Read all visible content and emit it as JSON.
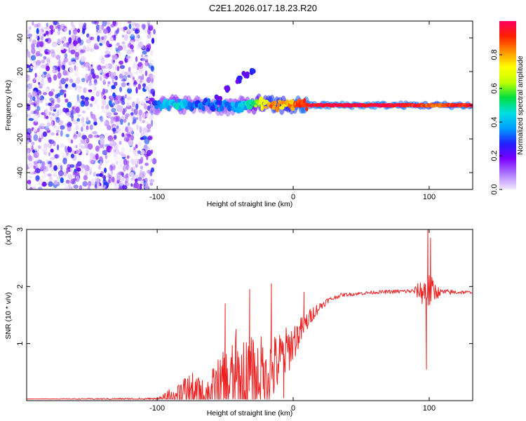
{
  "figure": {
    "title": "C2E1.2026.017.18.23.R20"
  },
  "chart_data": [
    {
      "type": "heatmap",
      "panel": "spectrogram",
      "xlabel": "Height of straight line (km)",
      "ylabel": "Frequency (Hz)",
      "xlim": [
        -196,
        132
      ],
      "ylim": [
        -50,
        50
      ],
      "x_ticks": [
        {
          "value": -100,
          "label": "-100"
        },
        {
          "value": 0,
          "label": "0"
        },
        {
          "value": 100,
          "label": "100"
        }
      ],
      "y_ticks": [
        {
          "value": 40,
          "label": "40"
        },
        {
          "value": 20,
          "label": "20"
        },
        {
          "value": 0,
          "label": "0"
        },
        {
          "value": -20,
          "label": "-20"
        },
        {
          "value": -40,
          "label": "-40"
        }
      ],
      "noise_region": {
        "x_from": -196,
        "x_to": -102,
        "description_level": 0.1
      },
      "signal_track": [
        {
          "x": -102,
          "freq": 0,
          "amp": 0.28
        },
        {
          "x": -95,
          "freq": 0,
          "amp": 0.38
        },
        {
          "x": -85,
          "freq": 1,
          "amp": 0.42
        },
        {
          "x": -75,
          "freq": 0,
          "amp": 0.35
        },
        {
          "x": -60,
          "freq": 0,
          "amp": 0.3
        },
        {
          "x": -45,
          "freq": -1,
          "amp": 0.35
        },
        {
          "x": -35,
          "freq": 0,
          "amp": 0.4
        },
        {
          "x": -25,
          "freq": 1,
          "amp": 0.65
        },
        {
          "x": -15,
          "freq": 0,
          "amp": 0.85
        },
        {
          "x": -5,
          "freq": 0,
          "amp": 0.75
        },
        {
          "x": 5,
          "freq": 0,
          "amp": 0.92
        },
        {
          "x": 30,
          "freq": 0,
          "amp": 0.97
        },
        {
          "x": 60,
          "freq": 0,
          "amp": 0.97
        },
        {
          "x": 90,
          "freq": 0,
          "amp": 0.92
        },
        {
          "x": 100,
          "freq": 0,
          "amp": 0.85
        },
        {
          "x": 132,
          "freq": 0,
          "amp": 0.95
        }
      ],
      "side_branch": [
        {
          "x": -55,
          "freq": 4
        },
        {
          "x": -48,
          "freq": 10
        },
        {
          "x": -40,
          "freq": 15
        },
        {
          "x": -35,
          "freq": 18
        },
        {
          "x": -30,
          "freq": 20
        }
      ],
      "colorbar": {
        "label": "Normalized spectral amplitude",
        "range": [
          0,
          1
        ],
        "ticks": [
          {
            "value": 0.0,
            "label": "0.0"
          },
          {
            "value": 0.2,
            "label": "0.2"
          },
          {
            "value": 0.4,
            "label": "0.4"
          },
          {
            "value": 0.6,
            "label": "0.6"
          },
          {
            "value": 0.8,
            "label": "0.8"
          }
        ],
        "stops": [
          "#f3e9ff",
          "#b07bff",
          "#7a00ff",
          "#2020ff",
          "#00a0ff",
          "#00e0e0",
          "#00e040",
          "#c0ff00",
          "#ffff00",
          "#ff9000",
          "#ff2000",
          "#ff0060"
        ]
      }
    },
    {
      "type": "line",
      "panel": "snr",
      "xlabel": "Height of straight line (km)",
      "ylabel": "SNR (10 * v/v)",
      "y_multiplier": "(x10",
      "y_multiplier_exp": "4",
      "xlim": [
        -196,
        132
      ],
      "ylim": [
        0,
        3
      ],
      "color": "#ee2222",
      "x_ticks": [
        {
          "value": -100,
          "label": "-100"
        },
        {
          "value": 0,
          "label": "0"
        },
        {
          "value": 100,
          "label": "100"
        }
      ],
      "y_ticks": [
        {
          "value": 3,
          "label": "3"
        },
        {
          "value": 2,
          "label": "2"
        },
        {
          "value": 1,
          "label": "1"
        }
      ],
      "envelope": [
        {
          "x": -196,
          "base": 0.03,
          "spread": 0.0
        },
        {
          "x": -100,
          "base": 0.03,
          "spread": 0.02
        },
        {
          "x": -93,
          "base": 0.05,
          "spread": 0.1
        },
        {
          "x": -85,
          "base": 0.12,
          "spread": 0.25
        },
        {
          "x": -75,
          "base": 0.15,
          "spread": 0.35
        },
        {
          "x": -65,
          "base": 0.1,
          "spread": 0.25
        },
        {
          "x": -55,
          "base": 0.2,
          "spread": 0.55
        },
        {
          "x": -45,
          "base": 0.35,
          "spread": 0.7
        },
        {
          "x": -35,
          "base": 0.35,
          "spread": 0.75
        },
        {
          "x": -25,
          "base": 0.45,
          "spread": 0.7
        },
        {
          "x": -15,
          "base": 0.55,
          "spread": 0.6
        },
        {
          "x": -5,
          "base": 0.85,
          "spread": 0.45
        },
        {
          "x": 5,
          "base": 1.2,
          "spread": 0.25
        },
        {
          "x": 15,
          "base": 1.55,
          "spread": 0.12
        },
        {
          "x": 25,
          "base": 1.75,
          "spread": 0.05
        },
        {
          "x": 35,
          "base": 1.85,
          "spread": 0.03
        },
        {
          "x": 60,
          "base": 1.9,
          "spread": 0.03
        },
        {
          "x": 88,
          "base": 1.92,
          "spread": 0.04
        },
        {
          "x": 94,
          "base": 1.92,
          "spread": 0.2
        },
        {
          "x": 98,
          "base": 1.9,
          "spread": 0.4
        },
        {
          "x": 102,
          "base": 1.92,
          "spread": 0.25
        },
        {
          "x": 108,
          "base": 1.9,
          "spread": 0.06
        },
        {
          "x": 132,
          "base": 1.9,
          "spread": 0.02
        }
      ],
      "spikes": [
        {
          "x": -50,
          "y": 1.7
        },
        {
          "x": -42,
          "y": 1.25
        },
        {
          "x": -32,
          "y": 1.95
        },
        {
          "x": -16,
          "y": 2.05
        },
        {
          "x": -7,
          "y": 0.05
        },
        {
          "x": 8,
          "y": 1.9
        },
        {
          "x": 98,
          "y": 0.55
        },
        {
          "x": 99,
          "y": 3.05
        },
        {
          "x": 101,
          "y": 2.85
        }
      ]
    }
  ]
}
